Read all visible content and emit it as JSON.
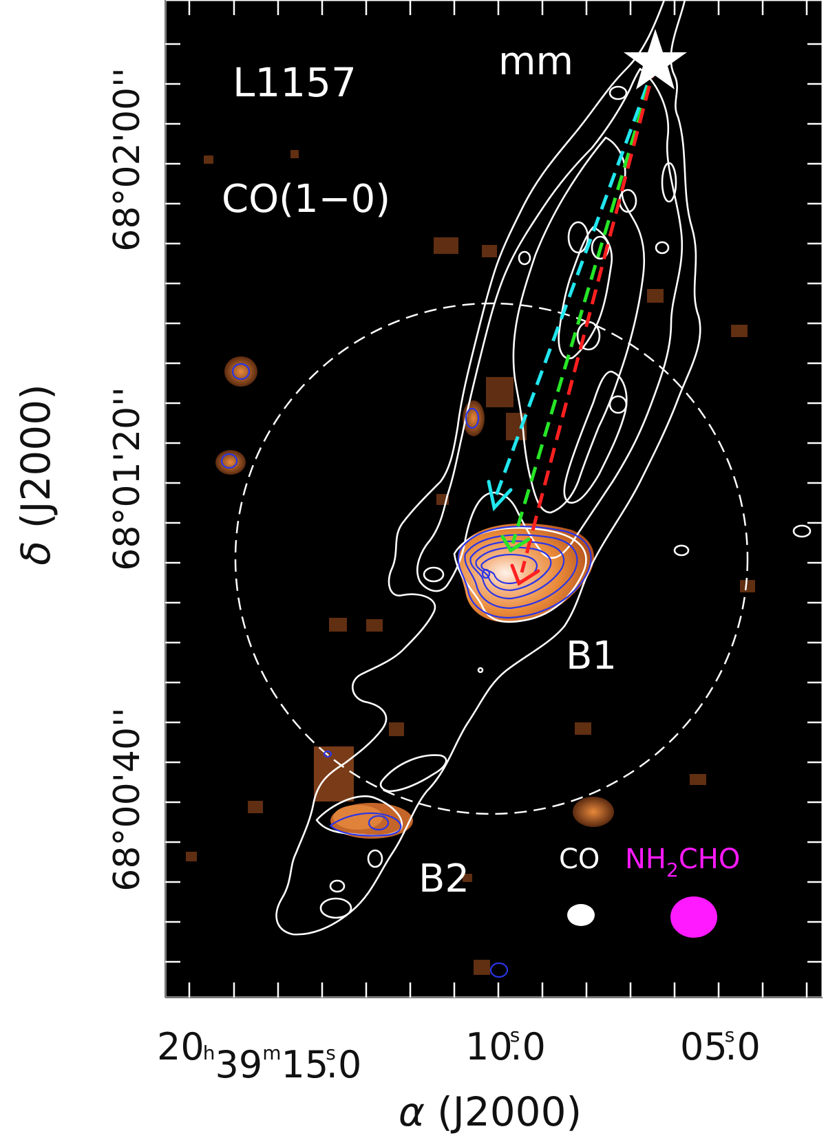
{
  "labels": {
    "source": "L1157",
    "line": "CO(1−0)",
    "mm": "mm",
    "b1": "B1",
    "b2": "B2",
    "beam_co": "CO",
    "beam_nh2cho_pre": "NH",
    "beam_nh2cho_sub": "2",
    "beam_nh2cho_post": "CHO"
  },
  "axes": {
    "xlabel_sym": "α",
    "xlabel_rest": "(J2000)",
    "ylabel_sym": "δ",
    "ylabel_rest": "(J2000)",
    "xticks": [
      {
        "h": "20",
        "m": "39",
        "s": "15",
        "frac": "0"
      },
      {
        "s": "10",
        "frac": "0"
      },
      {
        "s": "05",
        "frac": "0"
      }
    ],
    "yticks": [
      "68°02'00''",
      "68°01'20''",
      "68°00'40''"
    ]
  },
  "colors": {
    "background_map": "#000000",
    "co_contours": "#ffffff",
    "nh2cho_contours": "#2a35e8",
    "arrow_cyan": "#22e6ee",
    "arrow_green": "#27e627",
    "arrow_red": "#ff2020",
    "nh2cho_label": "#ff1aff",
    "emission_orange": "#e07828"
  }
}
